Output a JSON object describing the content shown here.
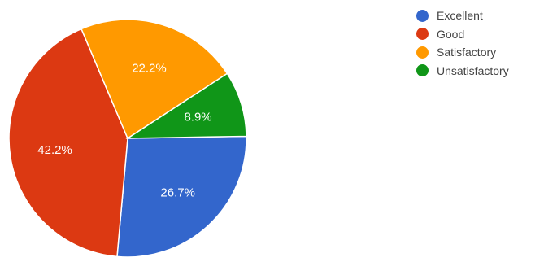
{
  "chart_data": {
    "type": "pie",
    "categories": [
      "Excellent",
      "Good",
      "Satisfactory",
      "Unsatisfactory"
    ],
    "values": [
      26.7,
      42.2,
      22.2,
      8.9
    ],
    "value_labels": [
      "26.7%",
      "42.2%",
      "22.2%",
      "8.9%"
    ],
    "colors": [
      "#3366cc",
      "#dc3912",
      "#ff9900",
      "#109618"
    ],
    "legend_position": "right",
    "legend": [
      {
        "label": "Excellent",
        "color": "#3366cc"
      },
      {
        "label": "Good",
        "color": "#dc3912"
      },
      {
        "label": "Satisfactory",
        "color": "#ff9900"
      },
      {
        "label": "Unsatisfactory",
        "color": "#109618"
      }
    ]
  }
}
